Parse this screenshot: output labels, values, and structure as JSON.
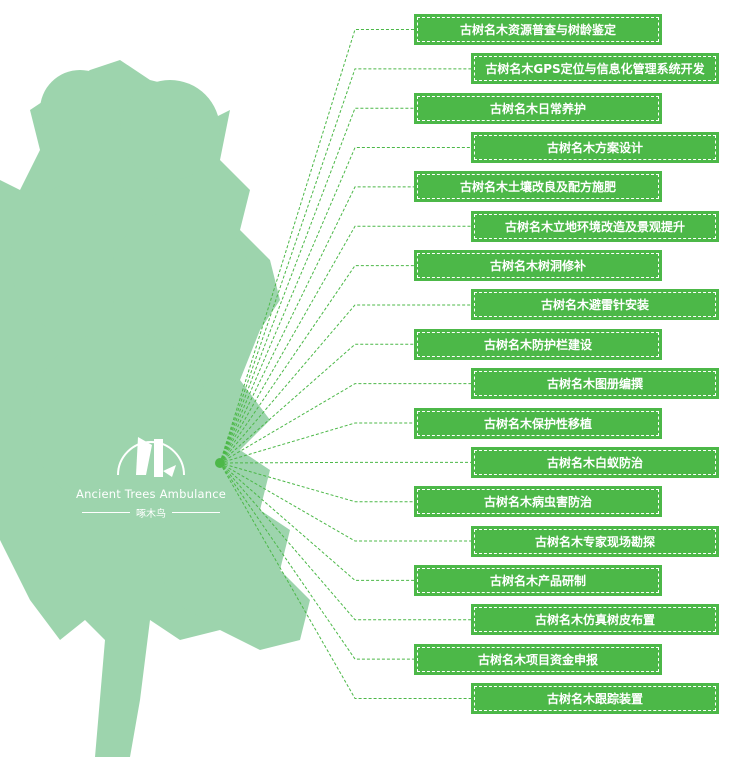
{
  "colors": {
    "tree": "#9dd4ad",
    "box": "#4cb848",
    "line": "#4cb848"
  },
  "logo": {
    "english": "Ancient Trees Ambulance",
    "chinese": "啄木鸟",
    "icon": "woodpecker-on-tree-icon"
  },
  "services": [
    "古树名木资源普查与树龄鉴定",
    "古树名木GPS定位与信息化管理系统开发",
    "古树名木日常养护",
    "古树名木方案设计",
    "古树名木土壤改良及配方施肥",
    "古树名木立地环境改造及景观提升",
    "古树名木树洞修补",
    "古树名木避雷针安装",
    "古树名木防护栏建设",
    "古树名木图册编撰",
    "古树名木保护性移植",
    "古树名木白蚁防治",
    "古树名木病虫害防治",
    "古树名木专家现场勘探",
    "古树名木产品研制",
    "古树名木仿真树皮布置",
    "古树名木项目资金申报",
    "古树名木跟踪装置"
  ]
}
